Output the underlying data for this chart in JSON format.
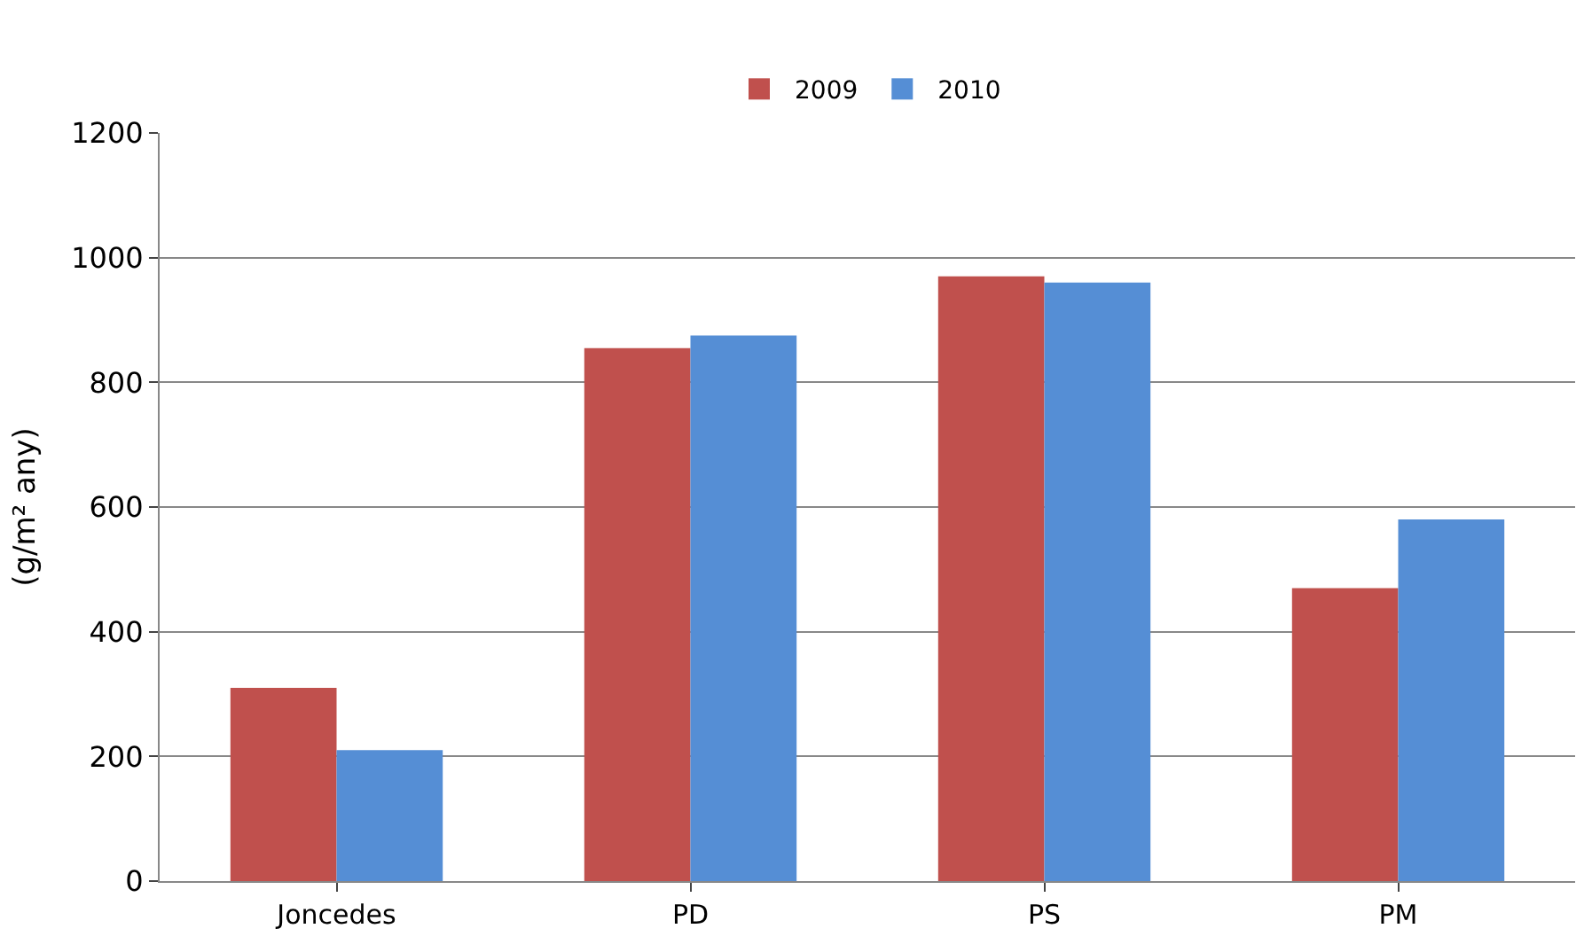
{
  "chart_data": {
    "type": "bar",
    "ylabel": "(g/m² any)",
    "categories": [
      "Joncedes",
      "PD",
      "PS",
      "PM"
    ],
    "series": [
      {
        "name": "2009",
        "color": "#c0504d",
        "values": [
          310,
          855,
          970,
          470
        ]
      },
      {
        "name": "2010",
        "color": "#558ed5",
        "values": [
          210,
          875,
          960,
          580
        ]
      }
    ],
    "ylim": [
      0,
      1200
    ],
    "yticks": [
      0,
      200,
      400,
      600,
      800,
      1000,
      1200
    ],
    "grid": "y",
    "legend": "top"
  }
}
